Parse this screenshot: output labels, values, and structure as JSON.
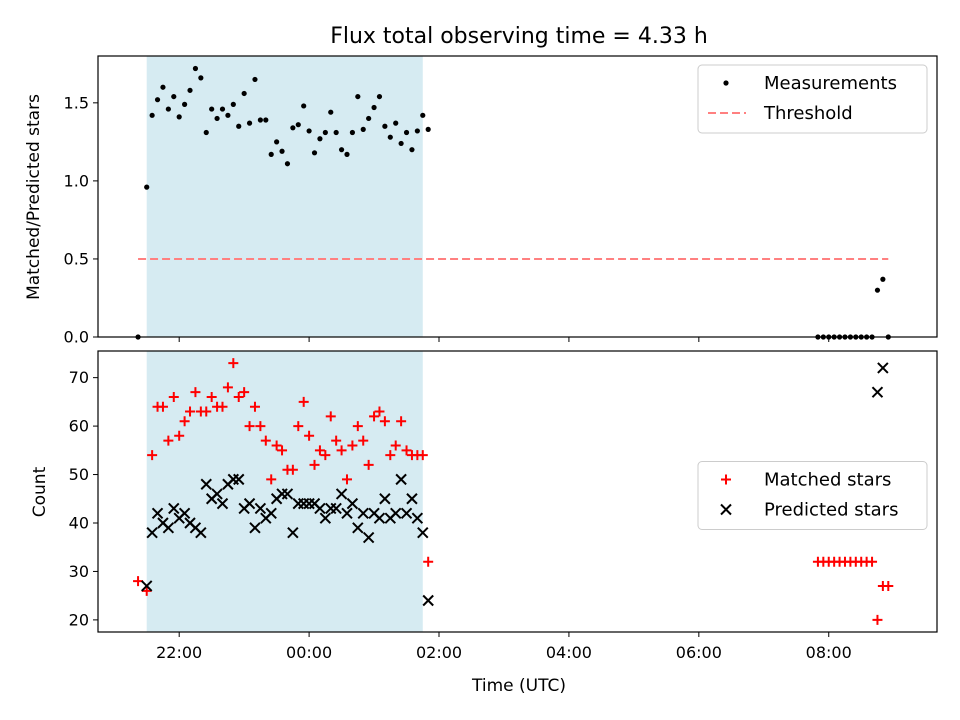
{
  "colors": {
    "shade": "#add8e6",
    "measurement": "#000000",
    "threshold": "#ff8080",
    "matched": "#ff0000",
    "predicted": "#000000"
  },
  "chart_data": [
    {
      "type": "scatter",
      "title": "Flux total observing time = 4.33 h",
      "xlabel": "",
      "ylabel": "Matched/Predicted stars",
      "x_unit": "hours (UTC), 24=00:00 next day",
      "xlim": [
        "20:45",
        "09:40"
      ],
      "ylim": [
        0,
        1.8
      ],
      "y_ticks": [
        "0.0",
        "0.5",
        "1.0",
        "1.5"
      ],
      "shaded_x_range": [
        "21:30",
        "01:45"
      ],
      "legend_position": "top-right",
      "legend": [
        "Measurements",
        "Threshold"
      ],
      "series": [
        {
          "name": "Measurements",
          "marker": "dot",
          "points": [
            [
              "21:22",
              0.0
            ],
            [
              "21:30",
              0.96
            ],
            [
              "21:35",
              1.42
            ],
            [
              "21:40",
              1.52
            ],
            [
              "21:45",
              1.6
            ],
            [
              "21:50",
              1.46
            ],
            [
              "21:55",
              1.54
            ],
            [
              "22:00",
              1.41
            ],
            [
              "22:05",
              1.49
            ],
            [
              "22:10",
              1.58
            ],
            [
              "22:15",
              1.72
            ],
            [
              "22:20",
              1.66
            ],
            [
              "22:25",
              1.31
            ],
            [
              "22:30",
              1.46
            ],
            [
              "22:35",
              1.4
            ],
            [
              "22:40",
              1.46
            ],
            [
              "22:45",
              1.42
            ],
            [
              "22:50",
              1.49
            ],
            [
              "22:55",
              1.35
            ],
            [
              "23:00",
              1.56
            ],
            [
              "23:05",
              1.37
            ],
            [
              "23:10",
              1.65
            ],
            [
              "23:15",
              1.39
            ],
            [
              "23:20",
              1.39
            ],
            [
              "23:25",
              1.17
            ],
            [
              "23:30",
              1.25
            ],
            [
              "23:35",
              1.19
            ],
            [
              "23:40",
              1.11
            ],
            [
              "23:45",
              1.34
            ],
            [
              "23:50",
              1.36
            ],
            [
              "23:55",
              1.48
            ],
            [
              "00:00",
              1.32
            ],
            [
              "00:05",
              1.18
            ],
            [
              "00:10",
              1.27
            ],
            [
              "00:15",
              1.31
            ],
            [
              "00:20",
              1.44
            ],
            [
              "00:25",
              1.31
            ],
            [
              "00:30",
              1.2
            ],
            [
              "00:35",
              1.17
            ],
            [
              "00:40",
              1.31
            ],
            [
              "00:45",
              1.54
            ],
            [
              "00:50",
              1.33
            ],
            [
              "00:55",
              1.4
            ],
            [
              "01:00",
              1.47
            ],
            [
              "01:05",
              1.54
            ],
            [
              "01:10",
              1.35
            ],
            [
              "01:15",
              1.28
            ],
            [
              "01:20",
              1.37
            ],
            [
              "01:25",
              1.24
            ],
            [
              "01:30",
              1.31
            ],
            [
              "01:35",
              1.2
            ],
            [
              "01:40",
              1.32
            ],
            [
              "01:45",
              1.42
            ],
            [
              "01:50",
              1.33
            ],
            [
              "07:50",
              0.0
            ],
            [
              "07:55",
              0.0
            ],
            [
              "08:00",
              0.0
            ],
            [
              "08:05",
              0.0
            ],
            [
              "08:10",
              0.0
            ],
            [
              "08:15",
              0.0
            ],
            [
              "08:20",
              0.0
            ],
            [
              "08:25",
              0.0
            ],
            [
              "08:30",
              0.0
            ],
            [
              "08:35",
              0.0
            ],
            [
              "08:40",
              0.0
            ],
            [
              "08:45",
              0.3
            ],
            [
              "08:50",
              0.37
            ],
            [
              "08:55",
              0.0
            ]
          ]
        },
        {
          "name": "Threshold",
          "style": "dashed",
          "points": [
            [
              "21:22",
              0.5
            ],
            [
              "08:55",
              0.5
            ]
          ]
        }
      ]
    },
    {
      "type": "scatter",
      "xlabel": "Time (UTC)",
      "ylabel": "Count",
      "xlim": [
        "20:45",
        "09:40"
      ],
      "ylim": [
        17.5,
        75.5
      ],
      "x_ticks": [
        "22:00",
        "00:00",
        "02:00",
        "04:00",
        "06:00",
        "08:00"
      ],
      "y_ticks": [
        "20",
        "30",
        "40",
        "50",
        "60",
        "70"
      ],
      "shaded_x_range": [
        "21:30",
        "01:45"
      ],
      "legend_position": "center-right",
      "legend": [
        "Matched stars",
        "Predicted stars"
      ],
      "series": [
        {
          "name": "Matched stars",
          "marker": "plus",
          "points": [
            [
              "21:22",
              28
            ],
            [
              "21:30",
              26
            ],
            [
              "21:35",
              54
            ],
            [
              "21:40",
              64
            ],
            [
              "21:45",
              64
            ],
            [
              "21:50",
              57
            ],
            [
              "21:55",
              66
            ],
            [
              "22:00",
              58
            ],
            [
              "22:05",
              61
            ],
            [
              "22:10",
              63
            ],
            [
              "22:15",
              67
            ],
            [
              "22:20",
              63
            ],
            [
              "22:25",
              63
            ],
            [
              "22:30",
              66
            ],
            [
              "22:35",
              64
            ],
            [
              "22:40",
              64
            ],
            [
              "22:45",
              68
            ],
            [
              "22:50",
              73
            ],
            [
              "22:55",
              66
            ],
            [
              "23:00",
              67
            ],
            [
              "23:05",
              60
            ],
            [
              "23:10",
              64
            ],
            [
              "23:15",
              60
            ],
            [
              "23:20",
              57
            ],
            [
              "23:25",
              49
            ],
            [
              "23:30",
              56
            ],
            [
              "23:35",
              55
            ],
            [
              "23:40",
              51
            ],
            [
              "23:45",
              51
            ],
            [
              "23:50",
              60
            ],
            [
              "23:55",
              65
            ],
            [
              "00:00",
              58
            ],
            [
              "00:05",
              52
            ],
            [
              "00:10",
              55
            ],
            [
              "00:15",
              54
            ],
            [
              "00:20",
              62
            ],
            [
              "00:25",
              57
            ],
            [
              "00:30",
              55
            ],
            [
              "00:35",
              49
            ],
            [
              "00:40",
              56
            ],
            [
              "00:45",
              60
            ],
            [
              "00:50",
              57
            ],
            [
              "00:55",
              52
            ],
            [
              "01:00",
              62
            ],
            [
              "01:05",
              63
            ],
            [
              "01:10",
              61
            ],
            [
              "01:15",
              54
            ],
            [
              "01:20",
              56
            ],
            [
              "01:25",
              61
            ],
            [
              "01:30",
              55
            ],
            [
              "01:35",
              54
            ],
            [
              "01:40",
              54
            ],
            [
              "01:45",
              54
            ],
            [
              "01:50",
              32
            ],
            [
              "07:50",
              32
            ],
            [
              "07:55",
              32
            ],
            [
              "08:00",
              32
            ],
            [
              "08:05",
              32
            ],
            [
              "08:10",
              32
            ],
            [
              "08:15",
              32
            ],
            [
              "08:20",
              32
            ],
            [
              "08:25",
              32
            ],
            [
              "08:30",
              32
            ],
            [
              "08:35",
              32
            ],
            [
              "08:40",
              32
            ],
            [
              "08:45",
              20
            ],
            [
              "08:50",
              27
            ],
            [
              "08:55",
              27
            ]
          ]
        },
        {
          "name": "Predicted stars",
          "marker": "x",
          "points": [
            [
              "21:30",
              27
            ],
            [
              "21:35",
              38
            ],
            [
              "21:40",
              42
            ],
            [
              "21:45",
              40
            ],
            [
              "21:50",
              39
            ],
            [
              "21:55",
              43
            ],
            [
              "22:00",
              41
            ],
            [
              "22:05",
              42
            ],
            [
              "22:10",
              40
            ],
            [
              "22:15",
              39
            ],
            [
              "22:20",
              38
            ],
            [
              "22:25",
              48
            ],
            [
              "22:30",
              45
            ],
            [
              "22:35",
              46
            ],
            [
              "22:40",
              44
            ],
            [
              "22:45",
              48
            ],
            [
              "22:50",
              49
            ],
            [
              "22:55",
              49
            ],
            [
              "23:00",
              43
            ],
            [
              "23:05",
              44
            ],
            [
              "23:10",
              39
            ],
            [
              "23:15",
              43
            ],
            [
              "23:20",
              41
            ],
            [
              "23:25",
              42
            ],
            [
              "23:30",
              45
            ],
            [
              "23:35",
              46
            ],
            [
              "23:40",
              46
            ],
            [
              "23:45",
              38
            ],
            [
              "23:50",
              44
            ],
            [
              "23:55",
              44
            ],
            [
              "00:00",
              44
            ],
            [
              "00:05",
              44
            ],
            [
              "00:10",
              43
            ],
            [
              "00:15",
              41
            ],
            [
              "00:20",
              43
            ],
            [
              "00:25",
              43
            ],
            [
              "00:30",
              46
            ],
            [
              "00:35",
              42
            ],
            [
              "00:40",
              44
            ],
            [
              "00:45",
              39
            ],
            [
              "00:50",
              42
            ],
            [
              "00:55",
              37
            ],
            [
              "01:00",
              42
            ],
            [
              "01:05",
              41
            ],
            [
              "01:10",
              45
            ],
            [
              "01:15",
              41
            ],
            [
              "01:20",
              42
            ],
            [
              "01:25",
              49
            ],
            [
              "01:30",
              42
            ],
            [
              "01:35",
              45
            ],
            [
              "01:40",
              41
            ],
            [
              "01:45",
              38
            ],
            [
              "01:50",
              24
            ],
            [
              "08:45",
              67
            ],
            [
              "08:50",
              72
            ]
          ]
        }
      ]
    }
  ]
}
